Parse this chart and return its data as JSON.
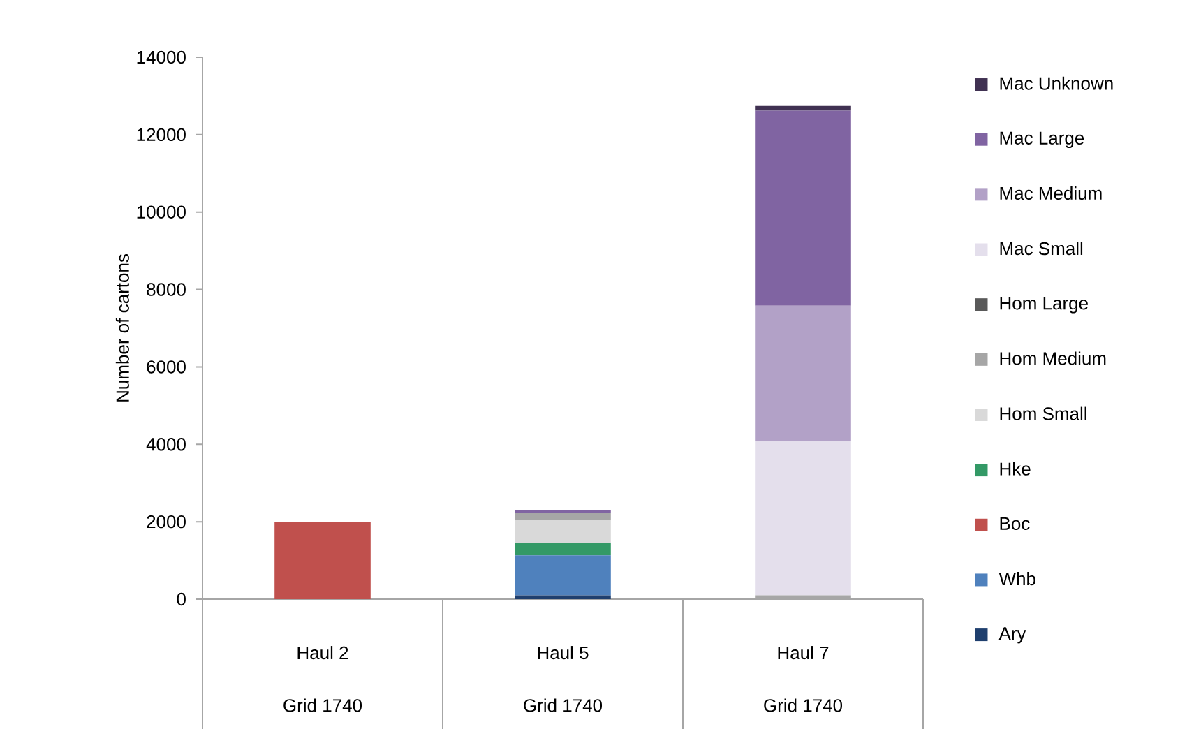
{
  "chart_data": {
    "type": "bar",
    "stacked": true,
    "ylabel": "Number of cartons",
    "categories": [
      "Haul 2",
      "Haul 5",
      "Haul 7"
    ],
    "annotations": [
      "Grid 1740",
      "Grid 1740",
      "Grid 1740"
    ],
    "ylim": [
      0,
      14000
    ],
    "yticks": [
      0,
      2000,
      4000,
      6000,
      8000,
      10000,
      12000,
      14000
    ],
    "grid": false,
    "legend": "right",
    "series": [
      {
        "name": "Ary",
        "color": "#1f3f6e",
        "values": [
          null,
          100,
          null
        ]
      },
      {
        "name": "Whb",
        "color": "#4f81bd",
        "values": [
          null,
          1030,
          null
        ]
      },
      {
        "name": "Boc",
        "color": "#c0504d",
        "values": [
          2000,
          null,
          null
        ]
      },
      {
        "name": "Hke",
        "color": "#339966",
        "values": [
          null,
          330,
          null
        ]
      },
      {
        "name": "Hom Small",
        "color": "#d9d9d9",
        "values": [
          null,
          590,
          null
        ]
      },
      {
        "name": "Hom Medium",
        "color": "#a6a6a6",
        "values": [
          null,
          170,
          100
        ]
      },
      {
        "name": "Hom Large",
        "color": "#595959",
        "values": [
          null,
          null,
          null
        ]
      },
      {
        "name": "Mac Small",
        "color": "#e4dfec",
        "values": [
          null,
          null,
          3990
        ]
      },
      {
        "name": "Mac Medium",
        "color": "#b2a1c7",
        "values": [
          null,
          null,
          3490
        ]
      },
      {
        "name": "Mac Large",
        "color": "#8064a2",
        "values": [
          null,
          90,
          5040
        ]
      },
      {
        "name": "Mac Unknown",
        "color": "#403152",
        "values": [
          null,
          null,
          120
        ]
      }
    ]
  }
}
